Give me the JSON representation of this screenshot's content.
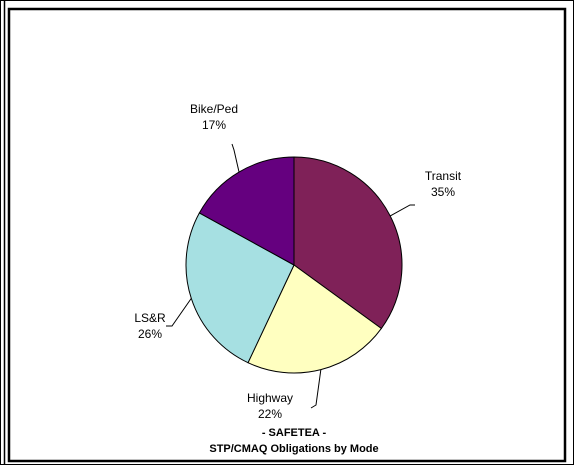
{
  "chart_data": {
    "type": "pie",
    "title_line1": "- SAFETEA -",
    "title_line2": "STP/CMAQ Obligations by Mode",
    "slices": [
      {
        "label": "Transit",
        "pct_label": "35%",
        "value": 35,
        "color": "#7f2158"
      },
      {
        "label": "Highway",
        "pct_label": "22%",
        "value": 22,
        "color": "#ffffc0"
      },
      {
        "label": "LS&R",
        "pct_label": "26%",
        "value": 26,
        "color": "#a6e0e2"
      },
      {
        "label": "Bike/Ped",
        "pct_label": "17%",
        "value": 17,
        "color": "#65007f"
      }
    ]
  }
}
